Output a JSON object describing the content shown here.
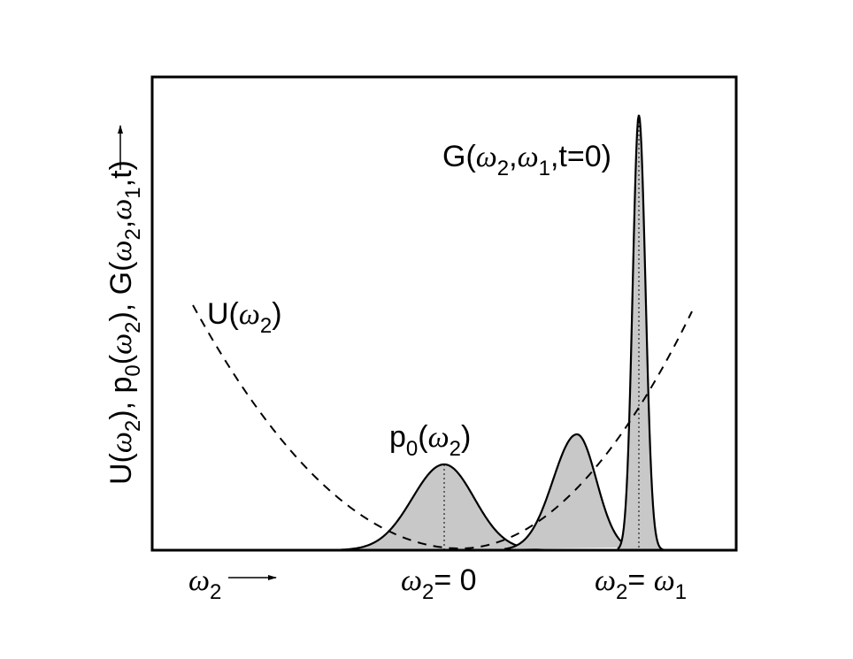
{
  "labels": {
    "g": [
      {
        "text": "G("
      },
      {
        "omega": "ω"
      },
      {
        "subscript": "2"
      },
      {
        "text": ","
      },
      {
        "omega": "ω"
      },
      {
        "subscript": "1"
      },
      {
        "text": ",t=0)"
      }
    ],
    "u": [
      {
        "text": "U("
      },
      {
        "omega": "ω"
      },
      {
        "subscript": "2"
      },
      {
        "text": ")"
      }
    ],
    "p": [
      {
        "text": "p"
      },
      {
        "subscript": "0"
      },
      {
        "text": "("
      },
      {
        "omega": "ω"
      },
      {
        "subscript": "2"
      },
      {
        "text": ")"
      }
    ],
    "y_axis": [
      {
        "text": "U("
      },
      {
        "omega": "ω"
      },
      {
        "subscript": "2"
      },
      {
        "text": "), p"
      },
      {
        "subscript": "0"
      },
      {
        "text": "("
      },
      {
        "omega": "ω"
      },
      {
        "subscript": "2"
      },
      {
        "text": "), G("
      },
      {
        "omega": "ω"
      },
      {
        "subscript": "2"
      },
      {
        "text": ","
      },
      {
        "omega": "ω"
      },
      {
        "subscript": "1"
      },
      {
        "text": ",t)"
      }
    ],
    "x_axis": [
      {
        "omega": "ω"
      },
      {
        "subscript": "2"
      }
    ],
    "x_zero": [
      {
        "omega": "ω"
      },
      {
        "subscript": "2"
      },
      {
        "text": "= 0"
      }
    ],
    "x_omega1": [
      {
        "omega": "ω"
      },
      {
        "subscript": "2"
      },
      {
        "text": "= "
      },
      {
        "omega": "ω"
      },
      {
        "subscript": "1"
      }
    ]
  }
}
